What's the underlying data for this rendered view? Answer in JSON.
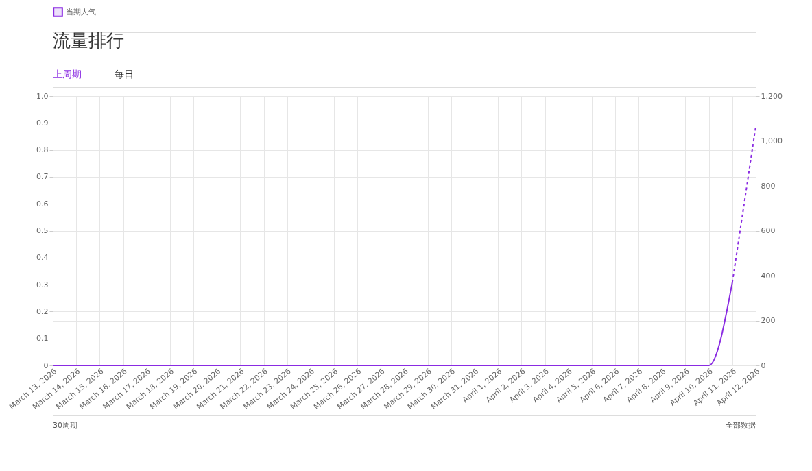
{
  "chart_data": {
    "type": "line",
    "title": "流量排行",
    "annotations": [
      "上周期",
      "每日",
      "30周期",
      "全部数据"
    ],
    "categories": [
      "March 13, 2026",
      "March 14, 2026",
      "March 15, 2026",
      "March 16, 2026",
      "March 17, 2026",
      "March 18, 2026",
      "March 19, 2026",
      "March 20, 2026",
      "March 21, 2026",
      "March 22, 2026",
      "March 23, 2026",
      "March 24, 2026",
      "March 25, 2026",
      "March 26, 2026",
      "March 27, 2026",
      "March 28, 2026",
      "March 29, 2026",
      "March 30, 2026",
      "March 31, 2026",
      "April 1, 2026",
      "April 2, 2026",
      "April 3, 2026",
      "April 4, 2026",
      "April 5, 2026",
      "April 6, 2026",
      "April 7, 2026",
      "April 8, 2026",
      "April 9, 2026",
      "April 10, 2026",
      "April 11, 2026",
      "April 12, 2026"
    ],
    "series": [
      {
        "name": "当期人气",
        "color": "#8a2be2",
        "axis": "y2",
        "line_style": "solid",
        "values": [
          0,
          0,
          0,
          0,
          0,
          0,
          0,
          0,
          0,
          0,
          0,
          0,
          0,
          0,
          0,
          0,
          0,
          0,
          0,
          0,
          0,
          0,
          0,
          0,
          0,
          0,
          0,
          0,
          0,
          370,
          null
        ]
      },
      {
        "color": "#8a2be2",
        "axis": "y2",
        "line_style": "dashed",
        "values": [
          null,
          null,
          null,
          null,
          null,
          null,
          null,
          null,
          null,
          null,
          null,
          null,
          null,
          null,
          null,
          null,
          null,
          null,
          null,
          null,
          null,
          null,
          null,
          null,
          null,
          null,
          null,
          null,
          null,
          370,
          1065
        ]
      }
    ],
    "ylim": [
      0,
      1
    ],
    "yticks": [
      0,
      0.1,
      0.2,
      0.3,
      0.4,
      0.5,
      0.6,
      0.7,
      0.8,
      0.9,
      {
        "value": 1,
        "label": "1.0"
      }
    ],
    "y2lim": [
      0,
      1200
    ],
    "y2ticks": [
      0,
      200,
      400,
      600,
      800,
      {
        "value": 1000,
        "label": "1,000"
      },
      {
        "value": 1200,
        "label": "1,200"
      }
    ],
    "grid": true,
    "legend": "top",
    "marker": "none"
  }
}
